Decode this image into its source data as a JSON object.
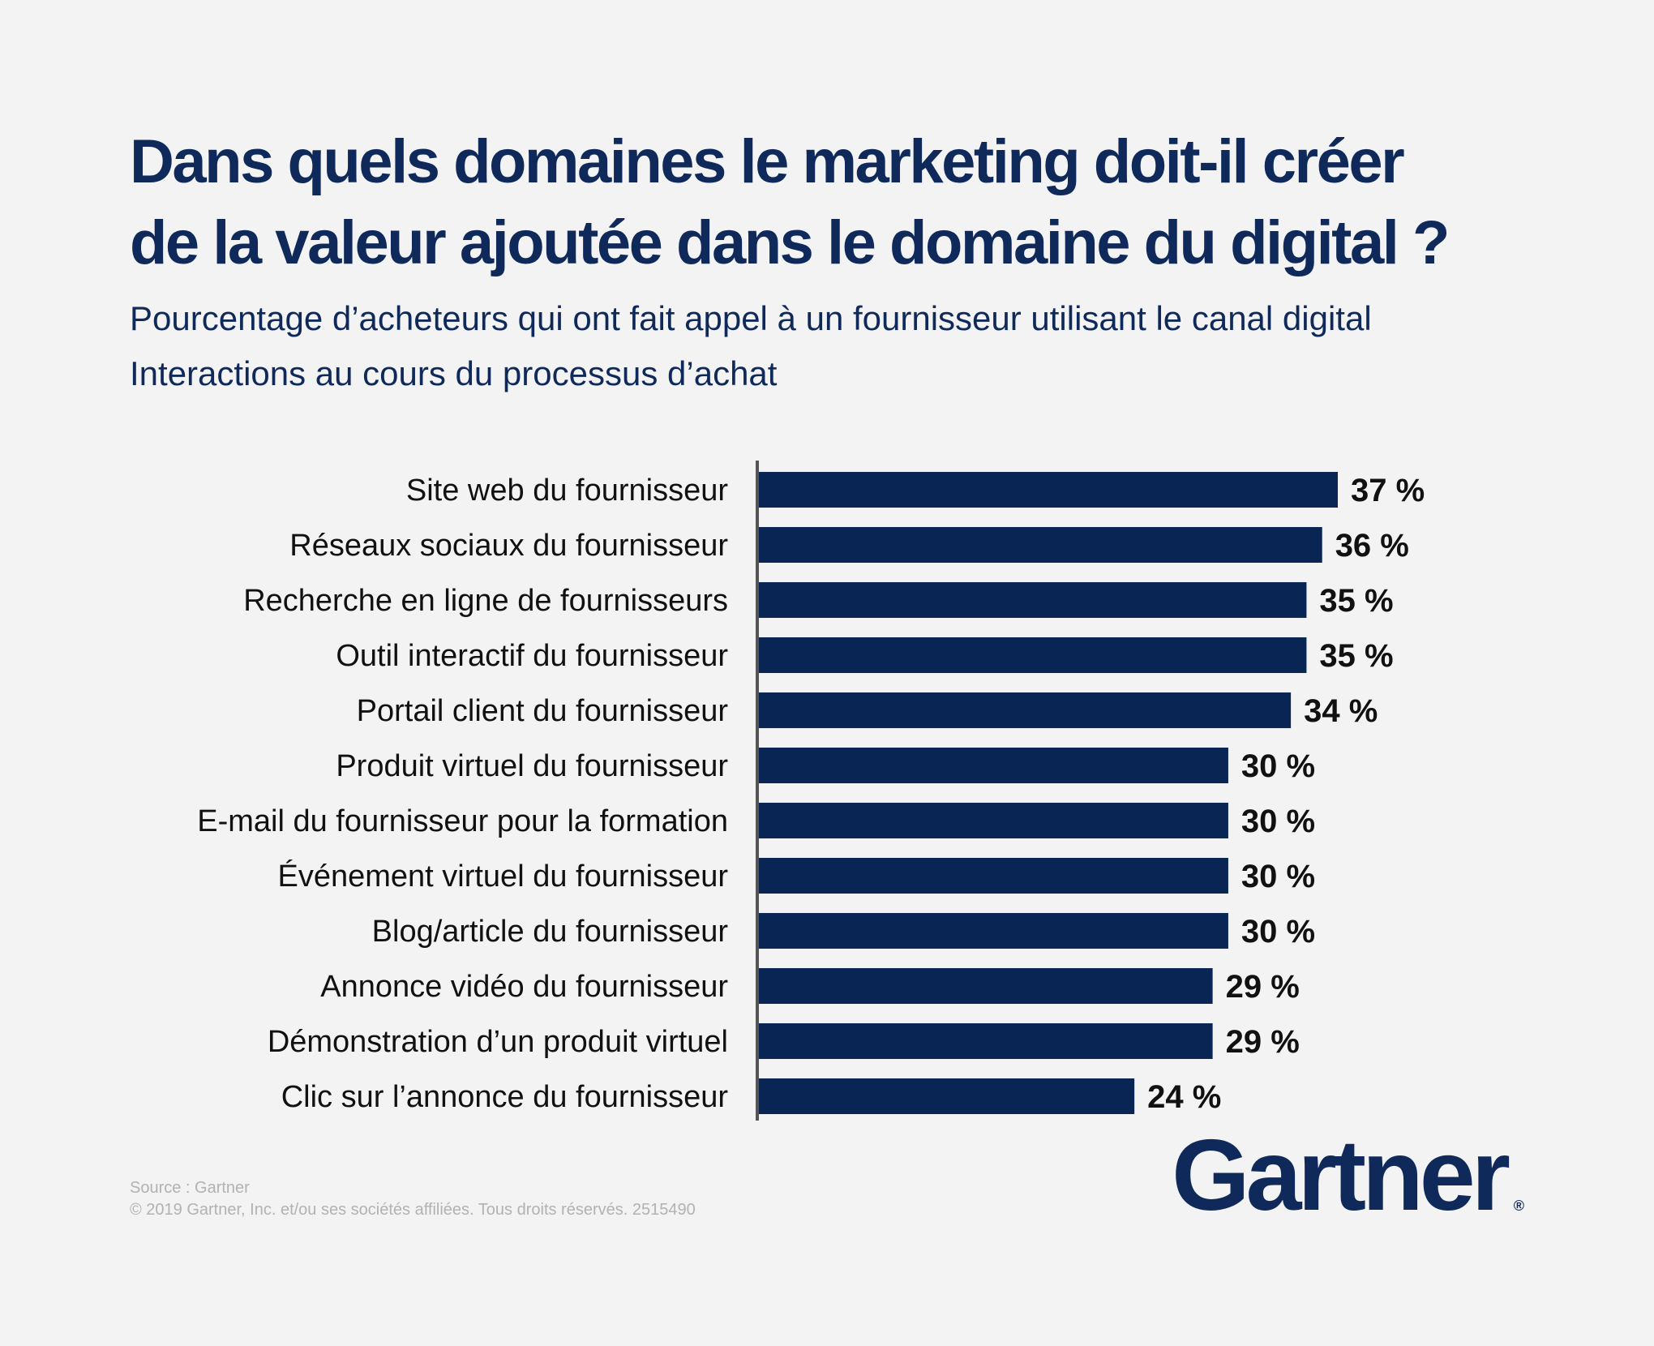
{
  "header": {
    "title_line1": "Dans quels domaines le marketing doit-il créer",
    "title_line2": "de la valeur ajoutée dans le domaine du digital ?",
    "subtitle_line1": "Pourcentage d’acheteurs qui ont fait appel à un fournisseur utilisant le canal digital",
    "subtitle_line2": "Interactions au cours du processus d’achat"
  },
  "footer": {
    "source": "Source : Gartner",
    "copyright": "© 2019 Gartner, Inc. et/ou ses sociétés affiliées. Tous droits réservés. 2515490"
  },
  "logo": {
    "text": "Gartner",
    "registered": "®"
  },
  "colors": {
    "bar": "#082554",
    "title": "#0f2a5a",
    "background": "#f3f3f3",
    "axis": "#555555"
  },
  "chart_data": {
    "type": "bar",
    "orientation": "horizontal",
    "categories": [
      "Site web du fournisseur",
      "Réseaux sociaux du fournisseur",
      "Recherche en ligne de fournisseurs",
      "Outil interactif du fournisseur",
      "Portail client du fournisseur",
      "Produit virtuel du fournisseur",
      "E-mail du fournisseur pour la formation",
      "Événement virtuel du fournisseur",
      "Blog/article du fournisseur",
      "Annonce vidéo du fournisseur",
      "Démonstration d’un produit virtuel",
      "Clic sur l’annonce du fournisseur"
    ],
    "values": [
      37,
      36,
      35,
      35,
      34,
      30,
      30,
      30,
      30,
      29,
      29,
      24
    ],
    "value_labels": [
      "37 %",
      "36 %",
      "35 %",
      "35 %",
      "34 %",
      "30 %",
      "30 %",
      "30 %",
      "30 %",
      "29 %",
      "29 %",
      "24 %"
    ],
    "xlim": [
      0,
      37
    ],
    "grid": false,
    "legend": "none"
  }
}
